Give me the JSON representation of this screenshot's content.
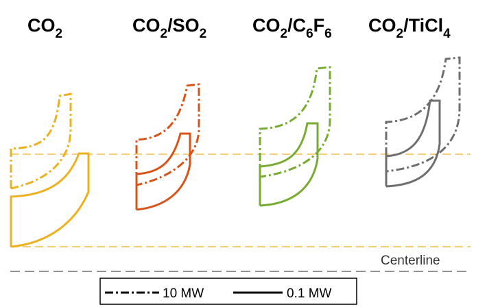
{
  "titles": [
    {
      "main": "CO",
      "parts": [
        {
          "t": "2",
          "sub": true
        }
      ]
    },
    {
      "main": "CO",
      "parts": [
        {
          "t": "2",
          "sub": true
        },
        {
          "t": "/SO",
          "sub": false
        },
        {
          "t": "2",
          "sub": true
        }
      ]
    },
    {
      "main": "CO",
      "parts": [
        {
          "t": "2",
          "sub": true
        },
        {
          "t": "/C",
          "sub": false
        },
        {
          "t": "6",
          "sub": true
        },
        {
          "t": "F",
          "sub": false
        },
        {
          "t": "6",
          "sub": true
        }
      ]
    },
    {
      "main": "CO",
      "parts": [
        {
          "t": "2",
          "sub": true
        },
        {
          "t": "/TiCl",
          "sub": false
        },
        {
          "t": "4",
          "sub": true
        }
      ]
    }
  ],
  "centerline_label": "Centerline",
  "legend": {
    "dashed_label": "10 MW",
    "solid_label": "0.1 MW"
  },
  "colors": {
    "co2": "#EDB120",
    "co2_so2": "#D95319",
    "co2_c6f6": "#77AC30",
    "co2_ticl4": "#6E6E6E",
    "guide": "#EDB120",
    "centerline": "#555555"
  }
}
